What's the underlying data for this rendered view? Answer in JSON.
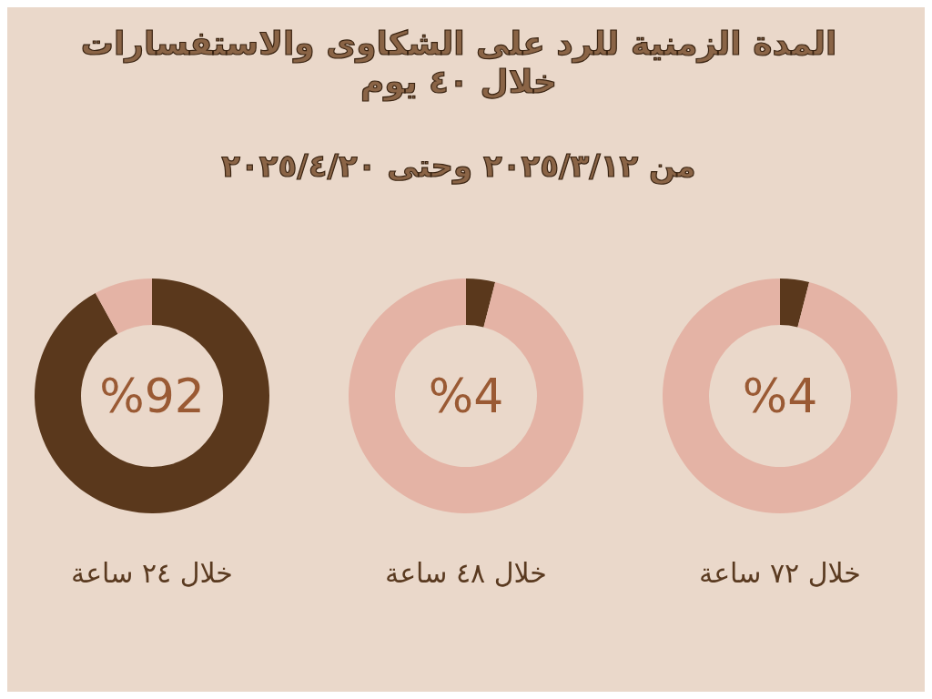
{
  "chart_data": [
    {
      "type": "other",
      "title": "المدة الزمنية للرد على الشكاوى والاستفسارات خلال ٤٠ يوم",
      "subtitle": "من ٢٠٢٥/٣/١٢ وحتى ٢٠٢٥/٤/٢٠"
    },
    {
      "type": "donut",
      "categories": [
        null,
        null
      ],
      "values": [
        92,
        8
      ],
      "colors": [
        "#5a381c",
        "#e4b3a5"
      ],
      "value_labels": [
        "%92",
        null
      ],
      "xlabel": "خلال ٢٤ ساعة"
    },
    {
      "type": "donut",
      "categories": [
        null,
        null
      ],
      "values": [
        4,
        96
      ],
      "colors": [
        "#5a381c",
        "#e4b3a5"
      ],
      "value_labels": [
        "%4",
        null
      ],
      "xlabel": "خلال ٤٨ ساعة"
    },
    {
      "type": "donut",
      "categories": [
        null,
        null
      ],
      "values": [
        4,
        96
      ],
      "colors": [
        "#5a381c",
        "#e4b3a5"
      ],
      "value_labels": [
        "%4",
        null
      ],
      "xlabel": "خلال ٧٢ ساعة"
    }
  ]
}
